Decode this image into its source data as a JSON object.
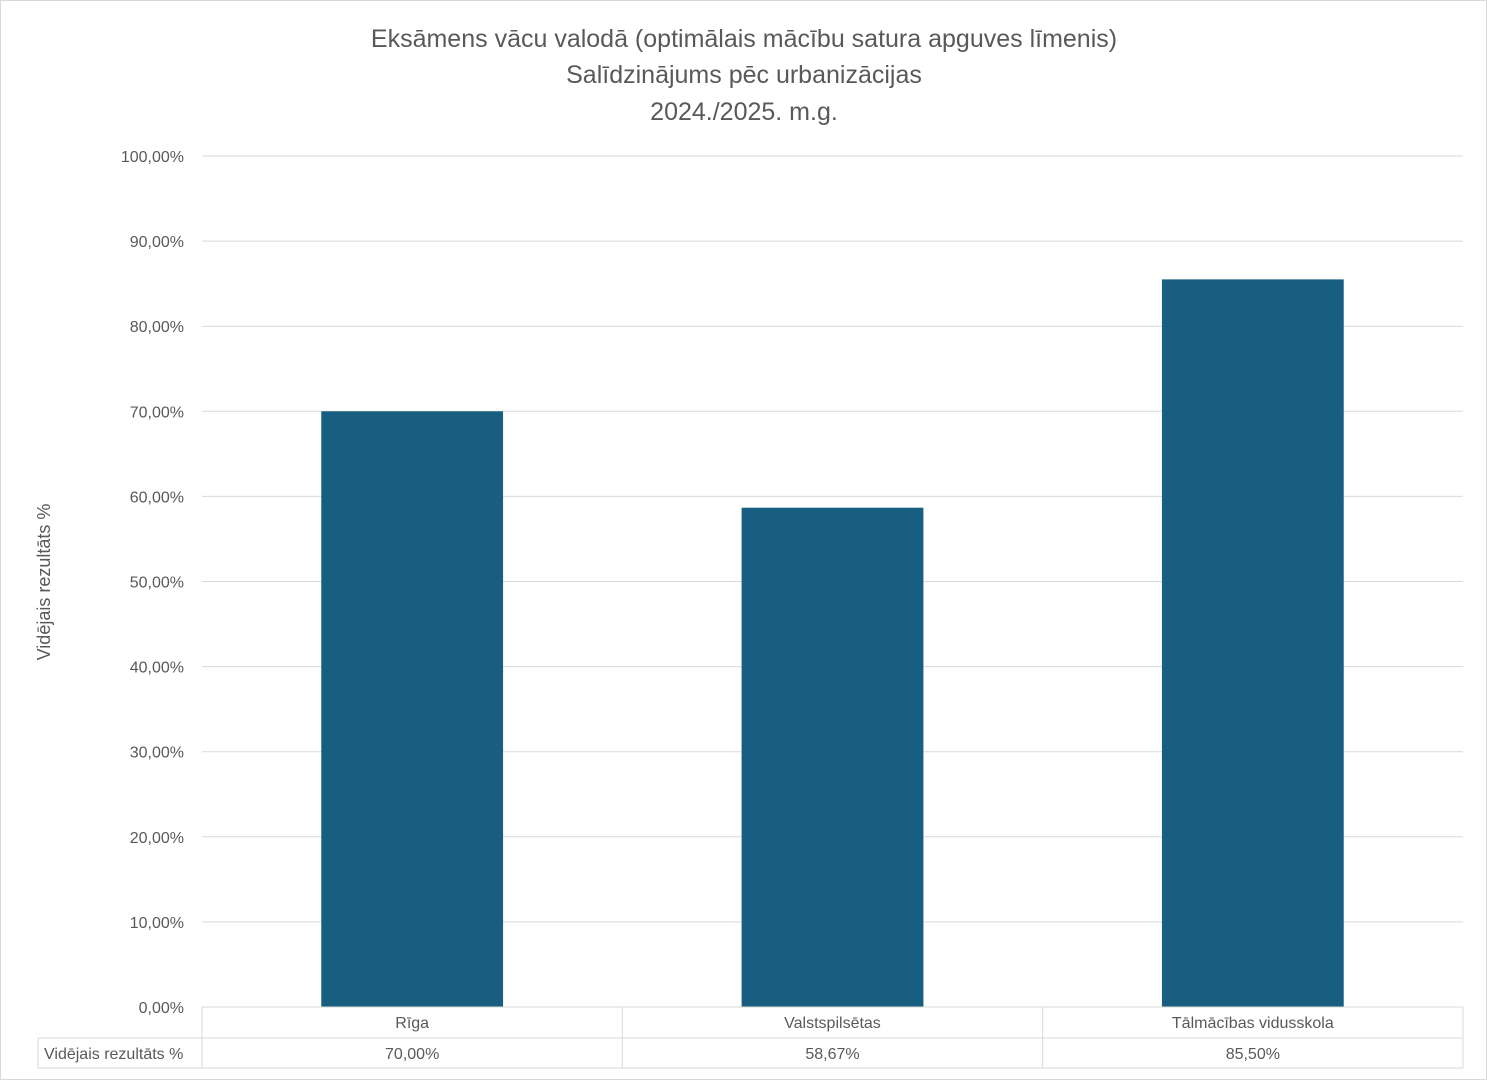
{
  "chart_data": {
    "type": "bar",
    "title": [
      "Eksāmens vācu valodā (optimālais mācību satura apguves līmenis)",
      "Salīdzinājums pēc urbanizācijas",
      "2024./2025. m.g."
    ],
    "xlabel": "",
    "ylabel": "Vidējais rezultāts %",
    "ylim": [
      0,
      100
    ],
    "yticks": [
      0,
      10,
      20,
      30,
      40,
      50,
      60,
      70,
      80,
      90,
      100
    ],
    "ytick_labels": [
      "0,00%",
      "10,00%",
      "20,00%",
      "30,00%",
      "40,00%",
      "50,00%",
      "60,00%",
      "70,00%",
      "80,00%",
      "90,00%",
      "100,00%"
    ],
    "categories": [
      "Rīga",
      "Valstspilsētas",
      "Tālmācības vidusskola"
    ],
    "series": [
      {
        "name": "Vidējais rezultāts %",
        "values": [
          70.0,
          58.67,
          85.5
        ],
        "labels": [
          "70,00%",
          "58,67%",
          "85,50%"
        ],
        "color": "#175e80"
      }
    ],
    "grid": true,
    "legend": "none",
    "data_table": true
  }
}
